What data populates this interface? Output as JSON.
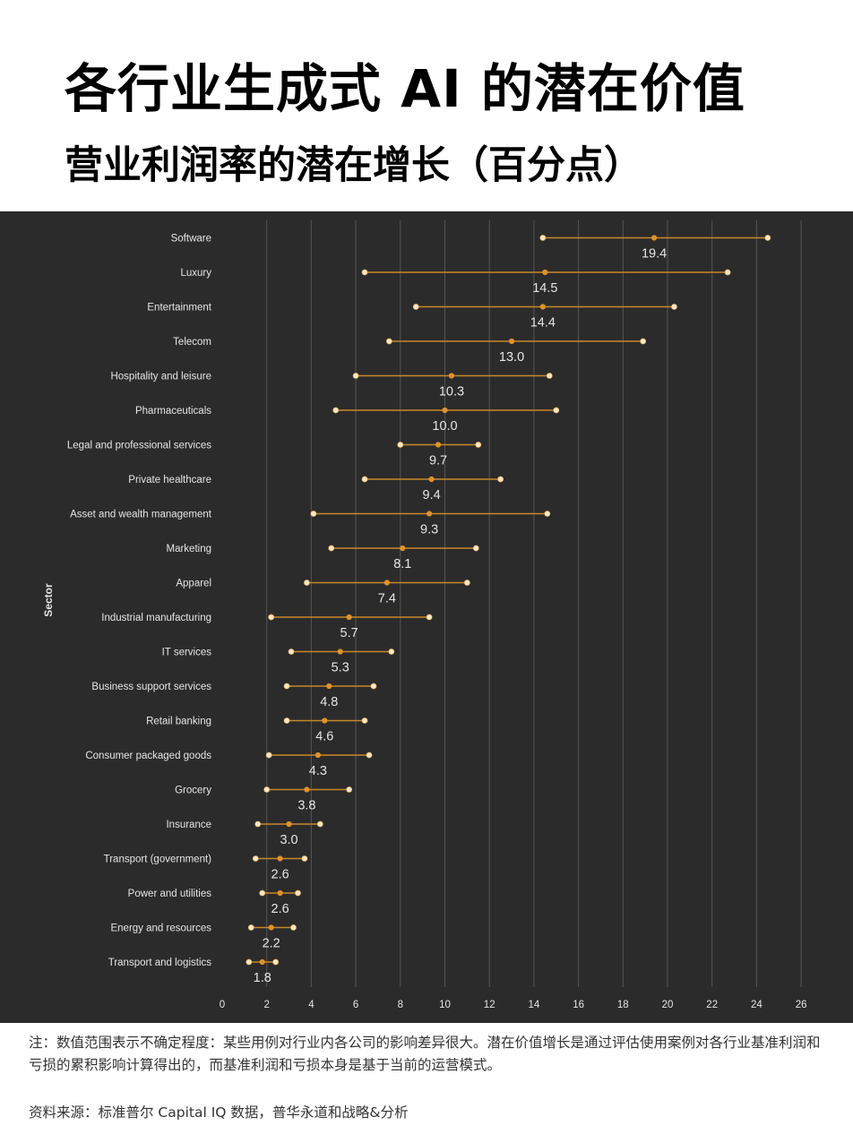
{
  "header": {
    "title": "各行业生成式 AI 的潜在价值",
    "subtitle": "营业利润率的潜在增长（百分点）"
  },
  "colors": {
    "panel_bg": "#2b2b2b",
    "grid": "#555555",
    "range_line": "#c9882a",
    "midpoint": "#e0922a",
    "endpoint_fill": "#fbe6c2",
    "text": "#e6e6e6"
  },
  "chart_data": {
    "type": "dot-range",
    "ylabel": "Sector",
    "xlabel": "",
    "xlim": [
      0,
      26
    ],
    "xticks": [
      0,
      2,
      4,
      6,
      8,
      10,
      12,
      14,
      16,
      18,
      20,
      22,
      24,
      26
    ],
    "grid": true,
    "series": [
      {
        "sector": "Software",
        "low": 14.4,
        "value": 19.4,
        "high": 24.5,
        "label": "19.4"
      },
      {
        "sector": "Luxury",
        "low": 6.4,
        "value": 14.5,
        "high": 22.7,
        "label": "14.5"
      },
      {
        "sector": "Entertainment",
        "low": 8.7,
        "value": 14.4,
        "high": 20.3,
        "label": "14.4"
      },
      {
        "sector": "Telecom",
        "low": 7.5,
        "value": 13.0,
        "high": 18.9,
        "label": "13.0"
      },
      {
        "sector": "Hospitality and leisure",
        "low": 6.0,
        "value": 10.3,
        "high": 14.7,
        "label": "10.3"
      },
      {
        "sector": "Pharmaceuticals",
        "low": 5.1,
        "value": 10.0,
        "high": 15.0,
        "label": "10.0"
      },
      {
        "sector": "Legal and professional services",
        "low": 8.0,
        "value": 9.7,
        "high": 11.5,
        "label": "9.7"
      },
      {
        "sector": "Private healthcare",
        "low": 6.4,
        "value": 9.4,
        "high": 12.5,
        "label": "9.4"
      },
      {
        "sector": "Asset and wealth management",
        "low": 4.1,
        "value": 9.3,
        "high": 14.6,
        "label": "9.3"
      },
      {
        "sector": "Marketing",
        "low": 4.9,
        "value": 8.1,
        "high": 11.4,
        "label": "8.1"
      },
      {
        "sector": "Apparel",
        "low": 3.8,
        "value": 7.4,
        "high": 11.0,
        "label": "7.4"
      },
      {
        "sector": "Industrial manufacturing",
        "low": 2.2,
        "value": 5.7,
        "high": 9.3,
        "label": "5.7"
      },
      {
        "sector": "IT services",
        "low": 3.1,
        "value": 5.3,
        "high": 7.6,
        "label": "5.3"
      },
      {
        "sector": "Business support services",
        "low": 2.9,
        "value": 4.8,
        "high": 6.8,
        "label": "4.8"
      },
      {
        "sector": "Retail banking",
        "low": 2.9,
        "value": 4.6,
        "high": 6.4,
        "label": "4.6"
      },
      {
        "sector": "Consumer packaged goods",
        "low": 2.1,
        "value": 4.3,
        "high": 6.6,
        "label": "4.3"
      },
      {
        "sector": "Grocery",
        "low": 2.0,
        "value": 3.8,
        "high": 5.7,
        "label": "3.8"
      },
      {
        "sector": "Insurance",
        "low": 1.6,
        "value": 3.0,
        "high": 4.4,
        "label": "3.0"
      },
      {
        "sector": "Transport (government)",
        "low": 1.5,
        "value": 2.6,
        "high": 3.7,
        "label": "2.6"
      },
      {
        "sector": "Power and utilities",
        "low": 1.8,
        "value": 2.6,
        "high": 3.4,
        "label": "2.6"
      },
      {
        "sector": "Energy and resources",
        "low": 1.3,
        "value": 2.2,
        "high": 3.2,
        "label": "2.2"
      },
      {
        "sector": "Transport and logistics",
        "low": 1.2,
        "value": 1.8,
        "high": 2.4,
        "label": "1.8"
      }
    ]
  },
  "footer": {
    "note": "注：数值范围表示不确定程度：某些用例对行业内各公司的影响差异很大。潜在价值增长是通过评估使用案例对各行业基准利润和亏损的累积影响计算得出的，而基准利润和亏损本身是基于当前的运营模式。",
    "source": "资料来源：标准普尔 Capital IQ 数据，普华永道和战略&分析"
  }
}
